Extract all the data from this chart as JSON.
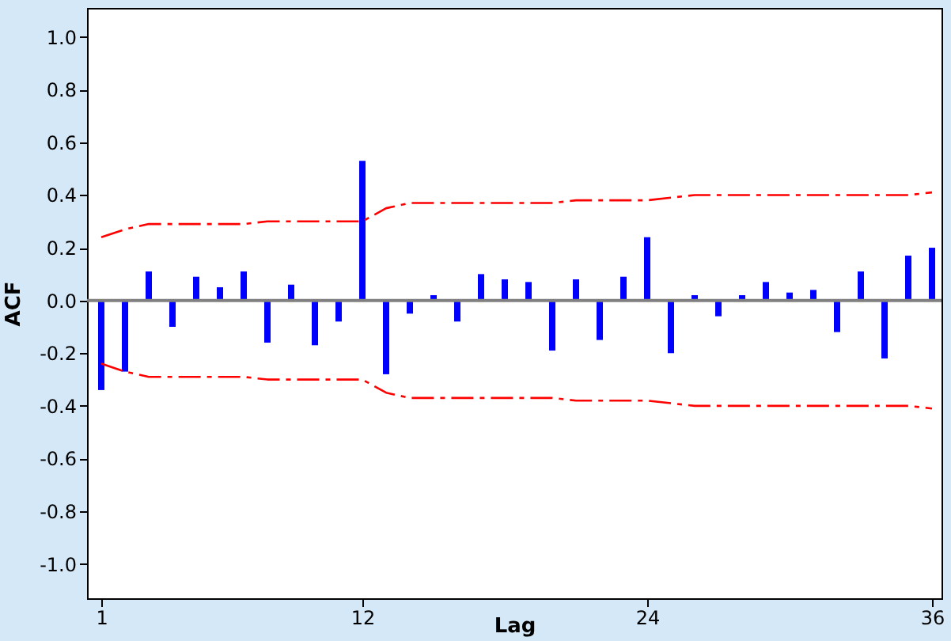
{
  "chart_data": {
    "type": "bar",
    "xlabel": "Lag",
    "ylabel": "ACF",
    "x": [
      1,
      2,
      3,
      4,
      5,
      6,
      7,
      8,
      9,
      10,
      11,
      12,
      13,
      14,
      15,
      16,
      17,
      18,
      19,
      20,
      21,
      22,
      23,
      24,
      25,
      26,
      27,
      28,
      29,
      30,
      31,
      32,
      33,
      34,
      35,
      36
    ],
    "series": [
      {
        "color": "#0000ff",
        "values": [
          -0.34,
          -0.27,
          0.11,
          -0.1,
          0.09,
          0.05,
          0.11,
          -0.16,
          0.06,
          -0.17,
          -0.08,
          0.53,
          -0.28,
          -0.05,
          0.02,
          -0.08,
          0.1,
          0.08,
          0.07,
          -0.19,
          0.08,
          -0.15,
          0.09,
          0.24,
          -0.2,
          0.02,
          -0.06,
          0.02,
          0.07,
          0.03,
          0.04,
          -0.12,
          0.11,
          -0.22,
          0.17,
          0.2
        ]
      },
      {
        "type": "line",
        "color": "#ff0000",
        "line_style": "dashed",
        "values": [
          0.24,
          0.27,
          0.29,
          0.29,
          0.29,
          0.29,
          0.29,
          0.3,
          0.3,
          0.3,
          0.3,
          0.3,
          0.35,
          0.37,
          0.37,
          0.37,
          0.37,
          0.37,
          0.37,
          0.37,
          0.38,
          0.38,
          0.38,
          0.38,
          0.39,
          0.4,
          0.4,
          0.4,
          0.4,
          0.4,
          0.4,
          0.4,
          0.4,
          0.4,
          0.4,
          0.41
        ]
      },
      {
        "type": "line",
        "color": "#ff0000",
        "line_style": "dashed",
        "values": [
          -0.24,
          -0.27,
          -0.29,
          -0.29,
          -0.29,
          -0.29,
          -0.29,
          -0.3,
          -0.3,
          -0.3,
          -0.3,
          -0.3,
          -0.35,
          -0.37,
          -0.37,
          -0.37,
          -0.37,
          -0.37,
          -0.37,
          -0.37,
          -0.38,
          -0.38,
          -0.38,
          -0.38,
          -0.39,
          -0.4,
          -0.4,
          -0.4,
          -0.4,
          -0.4,
          -0.4,
          -0.4,
          -0.4,
          -0.4,
          -0.4,
          -0.41
        ]
      }
    ],
    "xlim": [
      0.4,
      36.4
    ],
    "xticks": [
      1,
      12,
      24,
      36
    ],
    "ylim": [
      -1.13,
      1.11
    ],
    "yticks": [
      {
        "value": -1.0,
        "label": "-1.0"
      },
      {
        "value": -0.8,
        "label": "-0.8"
      },
      {
        "value": -0.6,
        "label": "-0.6"
      },
      {
        "value": -0.4,
        "label": "-0.4"
      },
      {
        "value": -0.2,
        "label": "-0.2"
      },
      {
        "value": 0.0,
        "label": "0.0"
      },
      {
        "value": 0.2,
        "label": "0.2"
      },
      {
        "value": 0.4,
        "label": "0.4"
      },
      {
        "value": 0.6,
        "label": "0.6"
      },
      {
        "value": 0.8,
        "label": "0.8"
      },
      {
        "value": 1.0,
        "label": "1.0"
      }
    ],
    "ref_lines": [
      {
        "axis": "y",
        "value": 0,
        "color": "#808080"
      }
    ],
    "grid": false
  }
}
